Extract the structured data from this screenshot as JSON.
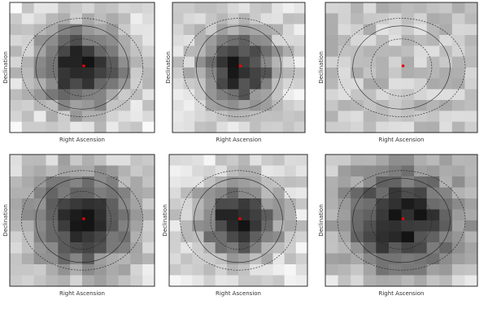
{
  "panels": [
    {
      "x_label": "Right Ascension",
      "y_label": "Declination"
    },
    {
      "x_label": "Right Ascension",
      "y_label": "Declination"
    },
    {
      "x_label": "Right Ascension",
      "y_label": "Declination"
    },
    {
      "x_label": "Right Ascension",
      "y_label": "Declination"
    },
    {
      "x_label": "Right Ascension",
      "y_label": "Declination"
    },
    {
      "x_label": "Right Ascension",
      "y_label": "Declination"
    }
  ]
}
